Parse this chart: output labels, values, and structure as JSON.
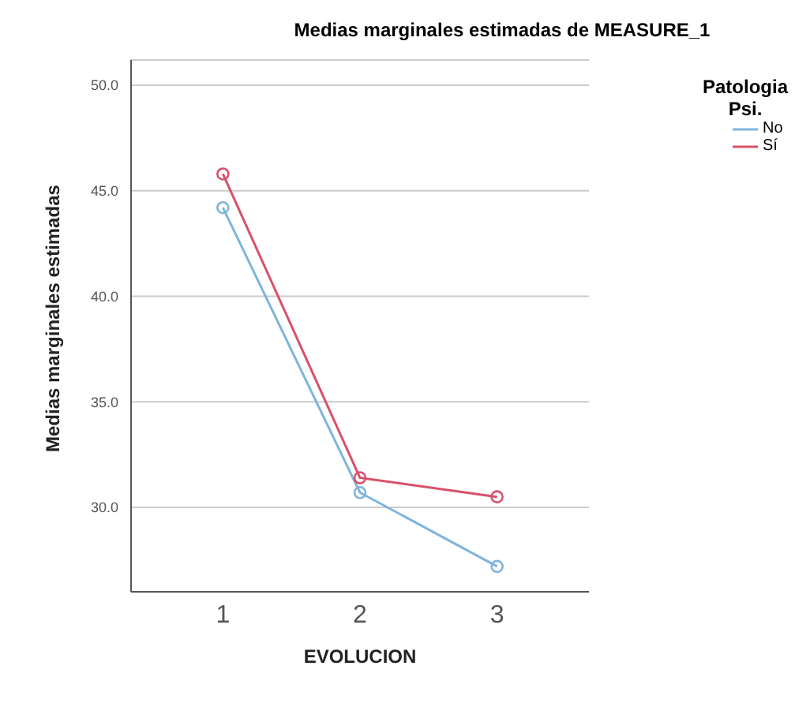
{
  "chart_data": {
    "type": "line",
    "title": "Medias marginales estimadas de MEASURE_1",
    "xlabel": "EVOLUCION",
    "ylabel": "Medias marginales estimadas",
    "legend_title": "Patologia Psi.",
    "categories": [
      "1",
      "2",
      "3"
    ],
    "series": [
      {
        "name": "No",
        "color": "#7fb4dc",
        "values": [
          44.2,
          30.7,
          27.2
        ]
      },
      {
        "name": "Sí",
        "color": "#d9506b",
        "values": [
          45.8,
          31.4,
          30.5
        ]
      }
    ],
    "ylim": [
      26,
      51.2
    ],
    "yticks": [
      {
        "value": 30,
        "label": "30.0"
      },
      {
        "value": 35,
        "label": "35.0"
      },
      {
        "value": 40,
        "label": "40.0"
      },
      {
        "value": 45,
        "label": "45.0"
      },
      {
        "value": 50,
        "label": "50.0"
      }
    ],
    "grid": "y",
    "legend": "top right",
    "marker": "circle",
    "line_style": "solid"
  }
}
